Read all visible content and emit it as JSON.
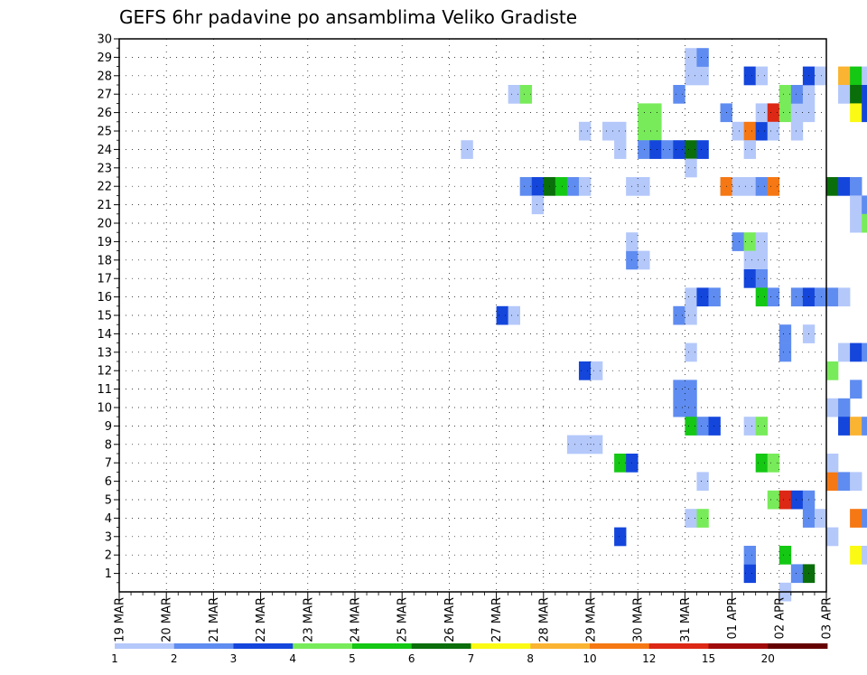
{
  "chart_data": {
    "type": "heatmap",
    "title": "GEFS 6hr padavine po ansamblima Veliko Gradiste",
    "x_ticks": [
      "19 MAR",
      "20 MAR",
      "21 MAR",
      "22 MAR",
      "23 MAR",
      "24 MAR",
      "25 MAR",
      "26 MAR",
      "27 MAR",
      "28 MAR",
      "29 MAR",
      "30 MAR",
      "31 MAR",
      "01 APR",
      "02 APR",
      "03 APR"
    ],
    "x_range_days": [
      0,
      15
    ],
    "x_step_days": 0.25,
    "y_ticks": [
      1,
      2,
      3,
      4,
      5,
      6,
      7,
      8,
      9,
      10,
      11,
      12,
      13,
      14,
      15,
      16,
      17,
      18,
      19,
      20,
      21,
      22,
      23,
      24,
      25,
      26,
      27,
      28,
      29,
      30
    ],
    "ylim": [
      0,
      30
    ],
    "grid": true,
    "colorscale": {
      "labels": [
        "1",
        "2",
        "3",
        "4",
        "5",
        "6",
        "7",
        "8",
        "10",
        "12",
        "15",
        "20"
      ],
      "colors": [
        "#b4c8fa",
        "#5f8cf0",
        "#1446dc",
        "#78eb5a",
        "#14c814",
        "#0a6e0a",
        "#fafa14",
        "#fab432",
        "#f57814",
        "#dc2814",
        "#a00a0a",
        "#640000"
      ]
    },
    "cells": [
      [
        7.25,
        24,
        1
      ],
      [
        8.0,
        15,
        3
      ],
      [
        8.25,
        15,
        1
      ],
      [
        8.25,
        27,
        1
      ],
      [
        8.5,
        27,
        4
      ],
      [
        8.5,
        22,
        2
      ],
      [
        8.75,
        22,
        3
      ],
      [
        9.0,
        22,
        6
      ],
      [
        9.25,
        22,
        5
      ],
      [
        9.5,
        22,
        2
      ],
      [
        9.75,
        22,
        1
      ],
      [
        8.75,
        21,
        1
      ],
      [
        9.5,
        8,
        1
      ],
      [
        9.75,
        8,
        1
      ],
      [
        10.0,
        8,
        1
      ],
      [
        9.75,
        12,
        3
      ],
      [
        10.0,
        12,
        1
      ],
      [
        9.75,
        25,
        1
      ],
      [
        10.25,
        25,
        1
      ],
      [
        10.5,
        25,
        1
      ],
      [
        10.5,
        24,
        1
      ],
      [
        10.5,
        7,
        5
      ],
      [
        10.75,
        7,
        3
      ],
      [
        10.5,
        3,
        3
      ],
      [
        10.75,
        18,
        2
      ],
      [
        11.0,
        18,
        1
      ],
      [
        10.75,
        19,
        1
      ],
      [
        10.75,
        22,
        1
      ],
      [
        11.0,
        22,
        1
      ],
      [
        11.0,
        26,
        4
      ],
      [
        11.25,
        26,
        4
      ],
      [
        11.0,
        25,
        4
      ],
      [
        11.25,
        25,
        4
      ],
      [
        11.0,
        24,
        2
      ],
      [
        11.25,
        24,
        3
      ],
      [
        11.5,
        24,
        2
      ],
      [
        11.75,
        24,
        3
      ],
      [
        12.0,
        24,
        6
      ],
      [
        12.25,
        24,
        3
      ],
      [
        11.75,
        27,
        2
      ],
      [
        11.75,
        10,
        2
      ],
      [
        12.0,
        10,
        2
      ],
      [
        11.75,
        11,
        2
      ],
      [
        12.0,
        11,
        2
      ],
      [
        11.75,
        15,
        2
      ],
      [
        12.0,
        15,
        1
      ],
      [
        12.0,
        16,
        1
      ],
      [
        12.25,
        16,
        3
      ],
      [
        12.5,
        16,
        2
      ],
      [
        12.0,
        23,
        1
      ],
      [
        12.0,
        28,
        1
      ],
      [
        12.25,
        28,
        1
      ],
      [
        12.0,
        29,
        1
      ],
      [
        12.25,
        29,
        2
      ],
      [
        12.0,
        13,
        1
      ],
      [
        12.0,
        9,
        5
      ],
      [
        12.25,
        9,
        2
      ],
      [
        12.5,
        9,
        3
      ],
      [
        12.0,
        4,
        1
      ],
      [
        12.25,
        4,
        4
      ],
      [
        12.25,
        6,
        1
      ],
      [
        12.75,
        26,
        2
      ],
      [
        12.75,
        22,
        9
      ],
      [
        13.0,
        22,
        1
      ],
      [
        13.25,
        22,
        1
      ],
      [
        13.5,
        22,
        2
      ],
      [
        13.75,
        22,
        9
      ],
      [
        13.0,
        25,
        1
      ],
      [
        13.25,
        25,
        9
      ],
      [
        13.5,
        25,
        3
      ],
      [
        13.25,
        24,
        1
      ],
      [
        13.0,
        19,
        2
      ],
      [
        13.25,
        19,
        4
      ],
      [
        13.5,
        19,
        1
      ],
      [
        13.25,
        18,
        1
      ],
      [
        13.5,
        18,
        1
      ],
      [
        13.25,
        17,
        3
      ],
      [
        13.5,
        17,
        2
      ],
      [
        13.5,
        16,
        5
      ],
      [
        13.75,
        16,
        2
      ],
      [
        13.25,
        9,
        1
      ],
      [
        13.5,
        9,
        4
      ],
      [
        13.25,
        1,
        3
      ],
      [
        13.25,
        2,
        2
      ],
      [
        13.25,
        28,
        3
      ],
      [
        13.5,
        28,
        1
      ],
      [
        13.5,
        26,
        1
      ],
      [
        13.75,
        26,
        10
      ],
      [
        14.0,
        26,
        4
      ],
      [
        14.25,
        26,
        1
      ],
      [
        14.5,
        26,
        1
      ],
      [
        13.75,
        25,
        1
      ],
      [
        14.25,
        25,
        1
      ],
      [
        14.0,
        27,
        4
      ],
      [
        14.25,
        27,
        2
      ],
      [
        14.5,
        27,
        1
      ],
      [
        13.5,
        7,
        5
      ],
      [
        13.75,
        7,
        4
      ],
      [
        13.75,
        5,
        4
      ],
      [
        14.0,
        5,
        10
      ],
      [
        14.25,
        5,
        3
      ],
      [
        14.5,
        5,
        2
      ],
      [
        14.0,
        2,
        5
      ],
      [
        14.0,
        14,
        2
      ],
      [
        14.0,
        13,
        2
      ],
      [
        14.25,
        16,
        2
      ],
      [
        14.5,
        16,
        3
      ],
      [
        14.75,
        16,
        2
      ],
      [
        15.0,
        16,
        2
      ],
      [
        15.25,
        16,
        1
      ],
      [
        14.25,
        1,
        2
      ],
      [
        14.5,
        1,
        6
      ],
      [
        14.0,
        0,
        1
      ],
      [
        14.5,
        4,
        2
      ],
      [
        14.75,
        4,
        1
      ],
      [
        15.0,
        3,
        1
      ],
      [
        14.5,
        14,
        1
      ],
      [
        14.5,
        28,
        3
      ],
      [
        14.75,
        28,
        1
      ],
      [
        15.0,
        10,
        1
      ],
      [
        15.25,
        10,
        2
      ],
      [
        15.0,
        12,
        4
      ],
      [
        15.0,
        6,
        9
      ],
      [
        15.25,
        6,
        2
      ],
      [
        15.5,
        6,
        1
      ],
      [
        15.0,
        7,
        1
      ],
      [
        15.25,
        13,
        1
      ],
      [
        15.5,
        13,
        3
      ],
      [
        15.75,
        13,
        2
      ],
      [
        15.25,
        9,
        3
      ],
      [
        15.5,
        9,
        8
      ],
      [
        15.75,
        9,
        2
      ],
      [
        15.5,
        4,
        9
      ],
      [
        15.75,
        4,
        2
      ],
      [
        15.5,
        2,
        7
      ],
      [
        15.75,
        2,
        1
      ],
      [
        15.25,
        28,
        8
      ],
      [
        15.5,
        28,
        5
      ],
      [
        15.75,
        28,
        1
      ],
      [
        15.25,
        27,
        1
      ],
      [
        15.5,
        27,
        6
      ],
      [
        15.75,
        27,
        3
      ],
      [
        15.5,
        26,
        7
      ],
      [
        15.75,
        26,
        3
      ],
      [
        15.0,
        22,
        6
      ],
      [
        15.25,
        22,
        3
      ],
      [
        15.5,
        22,
        2
      ],
      [
        15.5,
        21,
        1
      ],
      [
        15.75,
        21,
        2
      ],
      [
        15.5,
        20,
        1
      ],
      [
        15.75,
        20,
        4
      ],
      [
        15.5,
        11,
        2
      ]
    ]
  }
}
